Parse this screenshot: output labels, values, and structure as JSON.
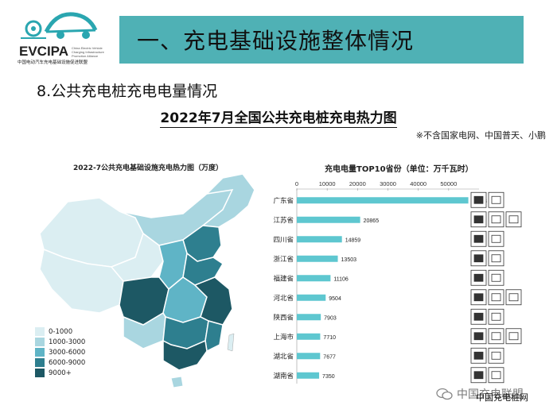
{
  "header": {
    "logo_text": "EVCIPA",
    "logo_sub_cn": "中国电动汽车充电基础设施促进联盟",
    "logo_sub_en": "China Electric Vehicle Charging Infrastructure Promotion Alliance",
    "title": "一、充电基础设施整体情况"
  },
  "section_title": "8.公共充电桩充电电量情况",
  "chart_title": "2022年7月全国公共充电桩充电热力图",
  "note": "※不含国家电网、中国普天、小鹏",
  "map": {
    "title": "2022-7公共充电基础设施充电热力图（万度）",
    "legend": [
      {
        "label": "0-1000",
        "color": "#dbeef2"
      },
      {
        "label": "1000-3000",
        "color": "#a9d6e0"
      },
      {
        "label": "3000-6000",
        "color": "#5fb4c6"
      },
      {
        "label": "6000-9000",
        "color": "#2e7f8f"
      },
      {
        "label": "9000+",
        "color": "#1d5864"
      }
    ]
  },
  "chart_data": {
    "type": "bar",
    "orientation": "horizontal",
    "title": "充电电量TOP10省份（单位：万千瓦时）",
    "categories": [
      "广东省",
      "江苏省",
      "四川省",
      "浙江省",
      "福建省",
      "河北省",
      "陕西省",
      "上海市",
      "湖北省",
      "湖南省"
    ],
    "values": [
      56483,
      20865,
      14859,
      13503,
      11106,
      9504,
      7903,
      7710,
      7677,
      7350
    ],
    "xlim": [
      0,
      60000
    ],
    "xticks": [
      0,
      10000,
      20000,
      30000,
      40000,
      50000
    ],
    "bar_color": "#5ec7d0"
  },
  "footer": {
    "watermark": "中国充电联盟",
    "site": "中国充电桩网"
  }
}
